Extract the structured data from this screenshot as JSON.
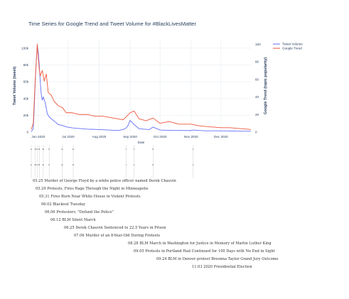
{
  "chart_data": {
    "type": "line",
    "title": "Time Series for Google Trend and Tweet Volume for #BlackLivesMatter",
    "xlabel": "Date",
    "ylabel_left": "Tweet Volume (tweet)",
    "ylabel_right": "Google Trend (topic popularity)",
    "y_left_range": [
      0,
      110000
    ],
    "y_right_range": [
      0,
      105
    ],
    "y_left_ticks": [
      0,
      20000,
      40000,
      60000,
      80000,
      100000
    ],
    "y_left_tick_labels": [
      "0",
      "20k",
      "40k",
      "60k",
      "80k",
      "100k"
    ],
    "y_right_ticks": [
      0,
      20,
      40,
      60,
      80,
      100
    ],
    "y_right_tick_labels": [
      "0",
      "20",
      "40",
      "60",
      "80",
      "100"
    ],
    "x_range": [
      "2020-05-25",
      "2020-12-31"
    ],
    "x_ticks": [
      "2020-06-01",
      "2020-07-01",
      "2020-08-01",
      "2020-09-01",
      "2020-10-01",
      "2020-11-01",
      "2020-12-01"
    ],
    "x_tick_labels": [
      "Jun 2020",
      "Jul 2020",
      "Aug 2020",
      "Sep 2020",
      "Oct 2020",
      "Nov 2020",
      "Dec 2020"
    ],
    "grid": true,
    "legend_position": "top-right",
    "series": [
      {
        "name": "Tweet Volume",
        "axis": "left",
        "color": "#636efa",
        "x": [
          "2020-05-25",
          "2020-05-27",
          "2020-05-28",
          "2020-05-29",
          "2020-05-30",
          "2020-05-31",
          "2020-06-01",
          "2020-06-02",
          "2020-06-03",
          "2020-06-04",
          "2020-06-05",
          "2020-06-06",
          "2020-06-08",
          "2020-06-10",
          "2020-06-12",
          "2020-06-15",
          "2020-06-18",
          "2020-06-21",
          "2020-06-25",
          "2020-06-30",
          "2020-07-05",
          "2020-07-10",
          "2020-07-20",
          "2020-08-01",
          "2020-08-10",
          "2020-08-20",
          "2020-08-25",
          "2020-08-28",
          "2020-08-30",
          "2020-09-01",
          "2020-09-05",
          "2020-09-10",
          "2020-09-20",
          "2020-09-24",
          "2020-10-01",
          "2020-10-15",
          "2020-11-01",
          "2020-11-03",
          "2020-11-15",
          "2020-12-01",
          "2020-12-15",
          "2020-12-31"
        ],
        "values": [
          500,
          4000,
          30000,
          60000,
          85000,
          102000,
          95000,
          80000,
          60000,
          45000,
          38000,
          42000,
          35000,
          22000,
          18000,
          15000,
          12000,
          9000,
          8000,
          6000,
          5000,
          4500,
          3500,
          3000,
          2500,
          2000,
          3000,
          5000,
          8000,
          14000,
          9000,
          4000,
          3000,
          6000,
          2500,
          2000,
          1800,
          2500,
          1500,
          1500,
          1200,
          1000
        ]
      },
      {
        "name": "Google Trend",
        "axis": "right",
        "color": "#ef553b",
        "x": [
          "2020-05-25",
          "2020-05-27",
          "2020-05-28",
          "2020-05-29",
          "2020-05-30",
          "2020-05-31",
          "2020-06-01",
          "2020-06-02",
          "2020-06-03",
          "2020-06-05",
          "2020-06-07",
          "2020-06-09",
          "2020-06-11",
          "2020-06-14",
          "2020-06-17",
          "2020-06-21",
          "2020-06-25",
          "2020-06-29",
          "2020-07-05",
          "2020-07-12",
          "2020-07-20",
          "2020-07-28",
          "2020-08-05",
          "2020-08-15",
          "2020-08-25",
          "2020-09-01",
          "2020-09-05",
          "2020-09-10",
          "2020-09-17",
          "2020-09-24",
          "2020-10-01",
          "2020-10-10",
          "2020-10-20",
          "2020-11-01",
          "2020-11-10",
          "2020-11-20",
          "2020-12-01",
          "2020-12-10",
          "2020-12-20",
          "2020-12-31"
        ],
        "values": [
          3,
          10,
          35,
          60,
          80,
          100,
          85,
          72,
          64,
          70,
          58,
          66,
          45,
          42,
          35,
          30,
          28,
          22,
          22,
          20,
          20,
          18,
          18,
          16,
          14,
          22,
          24,
          15,
          13,
          16,
          10,
          12,
          9,
          9,
          7,
          6,
          5,
          5,
          4,
          3
        ]
      }
    ]
  },
  "event_markers": {
    "dates": [
      "2020-05-25",
      "2020-05-29",
      "2020-05-31",
      "2020-06-02",
      "2020-06-06",
      "2020-06-12",
      "2020-06-25",
      "2020-07-06",
      "2020-08-28",
      "2020-09-05",
      "2020-09-24",
      "2020-11-03"
    ],
    "letters": [
      "A",
      "B",
      "C",
      "D",
      "E",
      "F",
      "G",
      "H",
      "I",
      "J",
      "K",
      "L"
    ]
  },
  "events": [
    "05.25 Murder of George Floyd by a white police officer named Derek Chauvin",
    "05.29 Protests, Fires Rage Through the Night in Minneapolis",
    "05.31 Fires Burn Near White House in Violent Protests",
    "06.02 Blackout Tuesday",
    "06.06 Protesters: \"Defund the Police\"",
    "06.12 BLM Silent March",
    "06.25 Derek Chauvin Sentenced to 22.5 Years in Prison",
    "07.06 Murder of an 8-Year-Old During Protests",
    "08.28 BLM March in Washington for Justice in Memory of Martin Luther King",
    "09.05 Protests in Portland Had Continued for 100 Days with No End in Sight",
    "09.24 BLM in Denver protest Breonna Taylor Grand Jury Outcome",
    "11.03 2020 Presidential Election"
  ]
}
